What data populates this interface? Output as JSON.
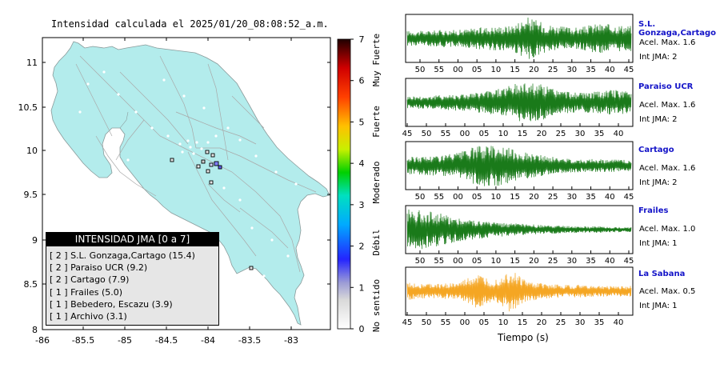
{
  "map": {
    "title": "Intensidad calculada el 2025/01/20_08:08:52_a.m.",
    "xticks": [
      "-86",
      "-85.5",
      "-85",
      "-84.5",
      "-84",
      "-83.5",
      "-83"
    ],
    "yticks": [
      "11",
      "10.5",
      "10",
      "9.5",
      "9",
      "8.5",
      "8"
    ],
    "colorbar_ticks": [
      "0",
      "1",
      "2",
      "3",
      "4",
      "5",
      "6",
      "7"
    ],
    "colorbar_labels": [
      "No sentido",
      "Débil",
      "Moderado",
      "Fuerte",
      "Muy Fuerte"
    ],
    "legend_title": "INTENSIDAD JMA [0 a 7]",
    "legend_items": [
      "[ 2 ]  S.L. Gonzaga,Cartago (15.4)",
      "[ 2 ]  Paraiso UCR (9.2)",
      "[ 2 ]  Cartago (7.9)",
      "[ 1 ]  Frailes (5.0)",
      "[ 1 ]  Bebedero, Escazu (3.9)",
      "[ 1 ]  Archivo (3.1)"
    ]
  },
  "colors": {
    "land": "#b3ecec",
    "trace_green": "#1a7a1a",
    "trace_orange": "#f5a623",
    "station_name": "#1414c8"
  },
  "chart_data": [
    {
      "type": "line",
      "title": "S.L. Gonzaga,Cartago",
      "x_ticks": [
        "50",
        "55",
        "00",
        "05",
        "10",
        "15",
        "20",
        "25",
        "30",
        "35",
        "40",
        "45"
      ],
      "accel_max": "Acel. Max. 1.6",
      "int_jma": "Int JMA: 2",
      "peak_at_tick": "20",
      "amplitude_profile": [
        0.35,
        0.35,
        0.4,
        0.4,
        0.5,
        0.55,
        0.6,
        1.0,
        0.7,
        0.55,
        0.5,
        0.7,
        0.65,
        0.6
      ],
      "color": "#1a7a1a"
    },
    {
      "type": "line",
      "title": "Paraiso UCR",
      "x_ticks": [
        "45",
        "50",
        "55",
        "00",
        "05",
        "10",
        "15",
        "20",
        "25",
        "30",
        "35",
        "40"
      ],
      "accel_max": "Acel. Max. 1.6",
      "int_jma": "Int JMA: 2",
      "peak_at_tick": "20",
      "amplitude_profile": [
        0.3,
        0.3,
        0.35,
        0.4,
        0.45,
        0.6,
        0.8,
        1.0,
        0.8,
        0.55,
        0.45,
        0.5,
        0.6,
        0.5
      ],
      "color": "#1a7a1a"
    },
    {
      "type": "line",
      "title": "Cartago",
      "x_ticks": [
        "50",
        "55",
        "00",
        "05",
        "10",
        "15",
        "20",
        "25",
        "30",
        "35",
        "40",
        "45"
      ],
      "accel_max": "Acel. Max. 1.6",
      "int_jma": "Int JMA: 2",
      "peak_at_tick": "10",
      "amplitude_profile": [
        0.4,
        0.45,
        0.5,
        0.6,
        0.9,
        1.0,
        0.8,
        0.6,
        0.45,
        0.35,
        0.3,
        0.3,
        0.3,
        0.25
      ],
      "color": "#1a7a1a"
    },
    {
      "type": "line",
      "title": "Frailes",
      "x_ticks": [
        "50",
        "55",
        "00",
        "05",
        "10",
        "15",
        "20",
        "25",
        "30",
        "35",
        "40",
        "45"
      ],
      "accel_max": "Acel. Max. 1.0",
      "int_jma": "Int JMA: 1",
      "peak_at_tick": "50",
      "amplitude_profile": [
        1.0,
        0.9,
        0.75,
        0.55,
        0.45,
        0.35,
        0.3,
        0.25,
        0.2,
        0.18,
        0.15,
        0.15,
        0.12,
        0.12
      ],
      "color": "#1a7a1a"
    },
    {
      "type": "line",
      "title": "La Sabana",
      "x_ticks": [
        "45",
        "50",
        "55",
        "00",
        "05",
        "10",
        "15",
        "20",
        "25",
        "30",
        "35",
        "40"
      ],
      "accel_max": "Acel. Max. 0.5",
      "int_jma": "Int JMA: 1",
      "peak_at_tick": "10",
      "amplitude_profile": [
        0.4,
        0.35,
        0.35,
        0.4,
        0.8,
        0.5,
        1.0,
        0.45,
        0.35,
        0.3,
        0.3,
        0.25,
        0.25,
        0.25
      ],
      "color": "#f5a623"
    }
  ],
  "xlabel": "Tiempo (s)"
}
